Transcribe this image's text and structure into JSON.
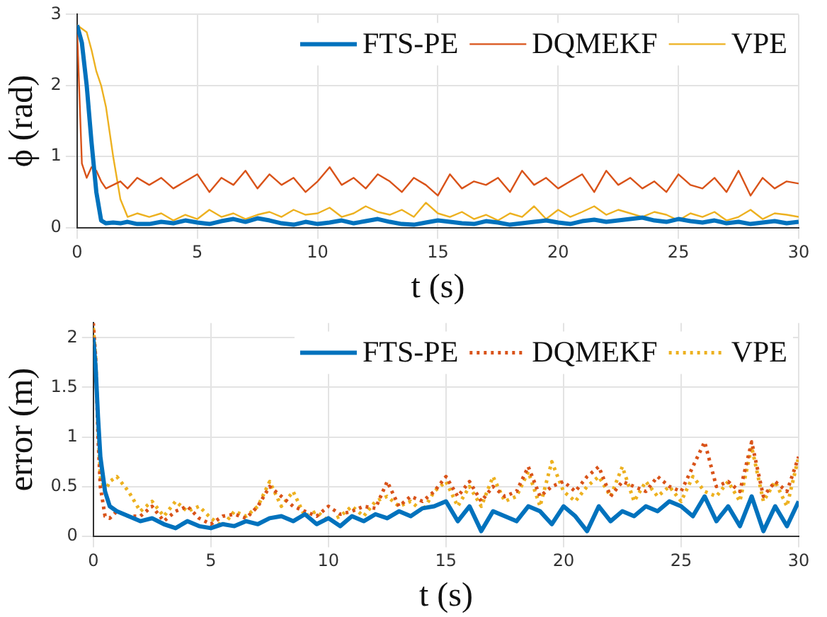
{
  "chart_data": [
    {
      "type": "line",
      "xlabel": "t (s)",
      "ylabel": "ϕ (rad)",
      "xlim": [
        0,
        30
      ],
      "xticks": [
        0,
        5,
        10,
        15,
        20,
        25,
        30
      ],
      "ylim": [
        0,
        3
      ],
      "yticks": [
        0,
        1,
        2,
        3
      ],
      "grid": true,
      "legend": "top right",
      "x": [
        0,
        0.2,
        0.4,
        0.6,
        0.8,
        1,
        1.2,
        1.5,
        1.8,
        2.1,
        2.5,
        3,
        3.5,
        4,
        4.5,
        5,
        5.5,
        6,
        6.5,
        7,
        7.5,
        8,
        8.5,
        9,
        9.5,
        10,
        10.5,
        11,
        11.5,
        12,
        12.5,
        13,
        13.5,
        14,
        14.5,
        15,
        15.5,
        16,
        16.5,
        17,
        17.5,
        18,
        18.5,
        19,
        19.5,
        20,
        20.5,
        21,
        21.5,
        22,
        22.5,
        23,
        23.5,
        24,
        24.5,
        25,
        25.5,
        26,
        26.5,
        27,
        27.5,
        28,
        28.5,
        29,
        29.5,
        30
      ],
      "series": [
        {
          "name": "FTS-PE",
          "color": "#0072bd",
          "line_style": "solid",
          "values": [
            2.85,
            2.6,
            2.0,
            1.2,
            0.5,
            0.1,
            0.06,
            0.07,
            0.06,
            0.08,
            0.05,
            0.05,
            0.08,
            0.06,
            0.1,
            0.07,
            0.05,
            0.09,
            0.12,
            0.08,
            0.13,
            0.1,
            0.06,
            0.04,
            0.08,
            0.05,
            0.07,
            0.1,
            0.06,
            0.09,
            0.12,
            0.08,
            0.05,
            0.04,
            0.07,
            0.1,
            0.08,
            0.06,
            0.05,
            0.09,
            0.07,
            0.04,
            0.06,
            0.08,
            0.1,
            0.07,
            0.05,
            0.09,
            0.11,
            0.08,
            0.1,
            0.12,
            0.14,
            0.1,
            0.08,
            0.12,
            0.09,
            0.07,
            0.1,
            0.06,
            0.08,
            0.05,
            0.07,
            0.09,
            0.06,
            0.08
          ]
        },
        {
          "name": "DQMEKF",
          "color": "#d95319",
          "line_style": "solid",
          "values": [
            2.8,
            0.9,
            0.7,
            0.85,
            0.8,
            0.65,
            0.55,
            0.6,
            0.65,
            0.55,
            0.7,
            0.6,
            0.7,
            0.55,
            0.65,
            0.75,
            0.5,
            0.7,
            0.6,
            0.8,
            0.55,
            0.75,
            0.6,
            0.7,
            0.5,
            0.65,
            0.85,
            0.6,
            0.7,
            0.55,
            0.75,
            0.65,
            0.5,
            0.7,
            0.6,
            0.45,
            0.75,
            0.55,
            0.65,
            0.6,
            0.7,
            0.5,
            0.8,
            0.6,
            0.7,
            0.55,
            0.65,
            0.75,
            0.5,
            0.8,
            0.6,
            0.7,
            0.55,
            0.65,
            0.5,
            0.75,
            0.6,
            0.55,
            0.7,
            0.5,
            0.8,
            0.45,
            0.7,
            0.55,
            0.65,
            0.62
          ]
        },
        {
          "name": "VPE",
          "color": "#edb120",
          "line_style": "solid",
          "values": [
            2.85,
            2.8,
            2.75,
            2.5,
            2.2,
            2.0,
            1.7,
            1.0,
            0.4,
            0.15,
            0.2,
            0.15,
            0.2,
            0.1,
            0.18,
            0.12,
            0.25,
            0.15,
            0.2,
            0.12,
            0.18,
            0.22,
            0.15,
            0.25,
            0.18,
            0.2,
            0.28,
            0.15,
            0.2,
            0.3,
            0.22,
            0.18,
            0.25,
            0.15,
            0.35,
            0.2,
            0.15,
            0.22,
            0.12,
            0.18,
            0.1,
            0.2,
            0.15,
            0.3,
            0.12,
            0.25,
            0.15,
            0.22,
            0.3,
            0.18,
            0.25,
            0.2,
            0.15,
            0.22,
            0.18,
            0.1,
            0.2,
            0.15,
            0.22,
            0.1,
            0.15,
            0.25,
            0.12,
            0.2,
            0.18,
            0.15
          ]
        }
      ]
    },
    {
      "type": "line",
      "xlabel": "t (s)",
      "ylabel": "error (m)",
      "xlim": [
        0,
        30
      ],
      "xticks": [
        0,
        5,
        10,
        15,
        20,
        25,
        30
      ],
      "ylim": [
        0,
        2.15
      ],
      "yticks": [
        0,
        0.5,
        1,
        1.5,
        2
      ],
      "grid": true,
      "legend": "top right",
      "x": [
        0,
        0.1,
        0.2,
        0.3,
        0.5,
        0.7,
        1,
        1.5,
        2,
        2.5,
        3,
        3.5,
        4,
        4.5,
        5,
        5.5,
        6,
        6.5,
        7,
        7.5,
        8,
        8.5,
        9,
        9.5,
        10,
        10.5,
        11,
        11.5,
        12,
        12.5,
        13,
        13.5,
        14,
        14.5,
        15,
        15.5,
        16,
        16.5,
        17,
        17.5,
        18,
        18.5,
        19,
        19.5,
        20,
        20.5,
        21,
        21.5,
        22,
        22.5,
        23,
        23.5,
        24,
        24.5,
        25,
        25.5,
        26,
        26.5,
        27,
        27.5,
        28,
        28.5,
        29,
        29.5,
        30
      ],
      "series": [
        {
          "name": "FTS-PE",
          "color": "#0072bd",
          "line_style": "solid",
          "values": [
            2.0,
            1.7,
            1.2,
            0.8,
            0.45,
            0.3,
            0.25,
            0.2,
            0.15,
            0.18,
            0.12,
            0.08,
            0.15,
            0.1,
            0.08,
            0.12,
            0.1,
            0.15,
            0.12,
            0.18,
            0.2,
            0.15,
            0.22,
            0.12,
            0.18,
            0.1,
            0.2,
            0.15,
            0.22,
            0.18,
            0.25,
            0.2,
            0.28,
            0.3,
            0.35,
            0.15,
            0.3,
            0.05,
            0.25,
            0.2,
            0.15,
            0.3,
            0.25,
            0.12,
            0.3,
            0.2,
            0.05,
            0.3,
            0.15,
            0.25,
            0.2,
            0.3,
            0.25,
            0.35,
            0.3,
            0.2,
            0.4,
            0.15,
            0.3,
            0.1,
            0.4,
            0.05,
            0.3,
            0.1,
            0.35
          ]
        },
        {
          "name": "DQMEKF",
          "color": "#d95319",
          "line_style": "dotted",
          "values": [
            2.15,
            1.8,
            1.0,
            0.5,
            0.2,
            0.18,
            0.25,
            0.2,
            0.2,
            0.3,
            0.15,
            0.25,
            0.3,
            0.18,
            0.12,
            0.2,
            0.22,
            0.18,
            0.3,
            0.5,
            0.4,
            0.3,
            0.25,
            0.2,
            0.3,
            0.22,
            0.25,
            0.3,
            0.28,
            0.55,
            0.3,
            0.4,
            0.35,
            0.45,
            0.6,
            0.4,
            0.55,
            0.35,
            0.5,
            0.4,
            0.45,
            0.7,
            0.4,
            0.5,
            0.55,
            0.45,
            0.6,
            0.7,
            0.4,
            0.55,
            0.5,
            0.45,
            0.6,
            0.5,
            0.45,
            0.7,
            0.95,
            0.5,
            0.55,
            0.45,
            0.95,
            0.4,
            0.55,
            0.45,
            0.8
          ]
        },
        {
          "name": "VPE",
          "color": "#edb120",
          "line_style": "dotted",
          "values": [
            2.1,
            1.8,
            1.1,
            0.6,
            0.45,
            0.55,
            0.6,
            0.45,
            0.25,
            0.35,
            0.2,
            0.35,
            0.25,
            0.3,
            0.18,
            0.1,
            0.25,
            0.2,
            0.3,
            0.55,
            0.3,
            0.45,
            0.2,
            0.25,
            0.15,
            0.2,
            0.3,
            0.2,
            0.35,
            0.4,
            0.3,
            0.35,
            0.25,
            0.45,
            0.55,
            0.3,
            0.5,
            0.3,
            0.6,
            0.35,
            0.4,
            0.65,
            0.3,
            0.75,
            0.45,
            0.35,
            0.5,
            0.6,
            0.4,
            0.7,
            0.35,
            0.55,
            0.4,
            0.5,
            0.35,
            0.6,
            0.45,
            0.4,
            0.55,
            0.35,
            0.9,
            0.35,
            0.55,
            0.3,
            0.8
          ]
        }
      ]
    }
  ]
}
